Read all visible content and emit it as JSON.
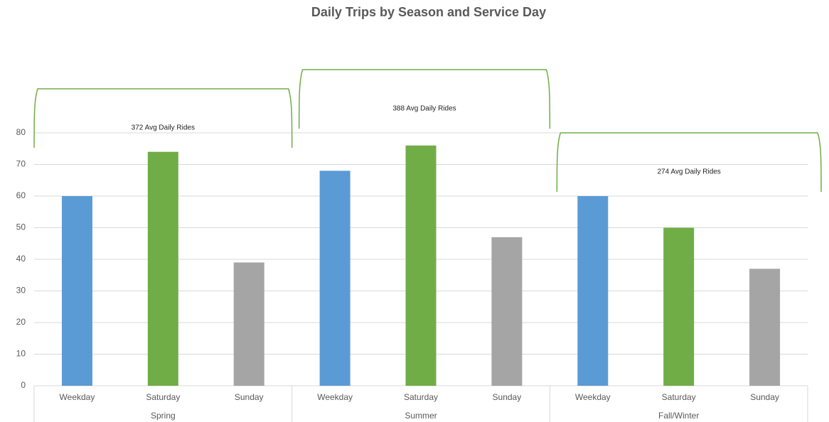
{
  "chart_data": {
    "type": "bar",
    "title": "Daily Trips by Season and Service Day",
    "groups": [
      {
        "name": "Spring",
        "categories": [
          "Weekday",
          "Saturday",
          "Sunday"
        ],
        "values": [
          60,
          74,
          39
        ],
        "annotation": "372 Avg Daily Rides"
      },
      {
        "name": "Summer",
        "categories": [
          "Weekday",
          "Saturday",
          "Sunday"
        ],
        "values": [
          68,
          76,
          47
        ],
        "annotation": "388 Avg Daily Rides"
      },
      {
        "name": "Fall/Winter",
        "categories": [
          "Weekday",
          "Saturday",
          "Sunday"
        ],
        "values": [
          60,
          50,
          37
        ],
        "annotation": "274 Avg Daily Rides"
      }
    ],
    "colors": [
      "#5b9bd5",
      "#70ad47",
      "#a5a5a5"
    ],
    "annotation_color": "#70ad47",
    "ylim": [
      0,
      80
    ],
    "yticks": [
      0,
      10,
      20,
      30,
      40,
      50,
      60,
      70,
      80
    ],
    "grid": true
  }
}
